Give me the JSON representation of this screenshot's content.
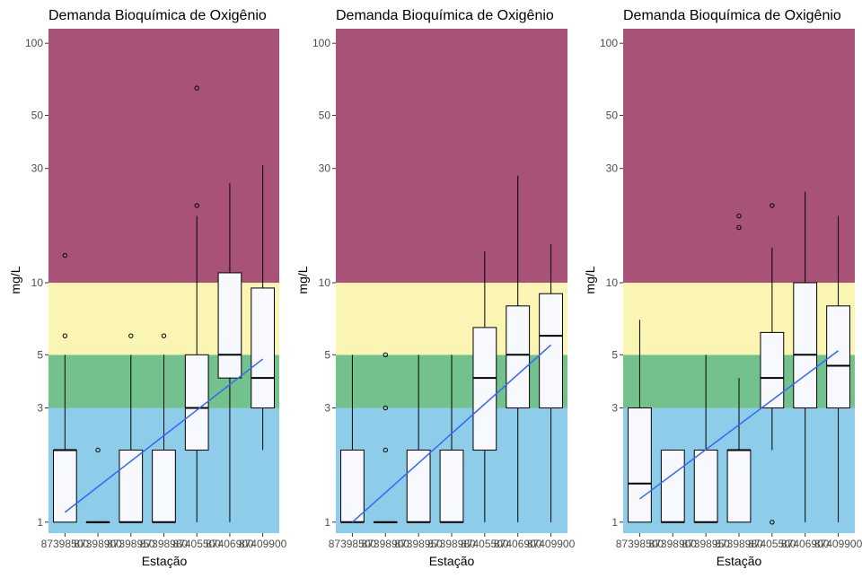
{
  "colors": {
    "band_blue": "#8ECDEA",
    "band_green": "#73C18C",
    "band_yellow": "#FAF5B2",
    "band_red": "#A95278",
    "box_fill": "#F8F8FF",
    "trend": "#3366FF"
  },
  "chart_data": [
    {
      "type": "box",
      "title": "Demanda Bioquímica de Oxigênio",
      "xlabel": "Estação",
      "ylabel": "mg/L",
      "y_scale": "log",
      "ylim": [
        0.9,
        115
      ],
      "y_ticks": [
        1,
        3,
        5,
        10,
        30,
        50,
        100
      ],
      "categories": [
        "87398500",
        "87398900",
        "87398950",
        "87398980",
        "87405500",
        "87406900",
        "87409900"
      ],
      "bands": [
        {
          "from": 0.9,
          "to": 3,
          "color": "band_blue"
        },
        {
          "from": 3,
          "to": 5,
          "color": "band_green"
        },
        {
          "from": 5,
          "to": 10,
          "color": "band_yellow"
        },
        {
          "from": 10,
          "to": 115,
          "color": "band_red"
        }
      ],
      "boxes": [
        {
          "min": 1,
          "q1": 1,
          "median": 2,
          "q3": 2,
          "max": 5,
          "outliers": [
            6,
            13
          ]
        },
        {
          "min": 1,
          "q1": 1,
          "median": 1,
          "q3": 1,
          "max": 1,
          "outliers": [
            2
          ]
        },
        {
          "min": 1,
          "q1": 1,
          "median": 1,
          "q3": 2,
          "max": 5,
          "outliers": [
            6
          ]
        },
        {
          "min": 1,
          "q1": 1,
          "median": 1,
          "q3": 2,
          "max": 5,
          "outliers": [
            6
          ]
        },
        {
          "min": 1,
          "q1": 2,
          "median": 3,
          "q3": 5,
          "max": 19,
          "outliers": [
            21,
            65
          ]
        },
        {
          "min": 1,
          "q1": 4,
          "median": 5,
          "q3": 11,
          "max": 26,
          "outliers": []
        },
        {
          "min": 2,
          "q1": 3,
          "median": 4,
          "q3": 9.5,
          "max": 31,
          "outliers": []
        }
      ],
      "trend": {
        "start": 1.1,
        "end": 4.8
      }
    },
    {
      "type": "box",
      "title": "Demanda Bioquímica de Oxigênio",
      "xlabel": "Estação",
      "ylabel": "mg/L",
      "y_scale": "log",
      "ylim": [
        0.9,
        115
      ],
      "y_ticks": [
        1,
        3,
        5,
        10,
        30,
        50,
        100
      ],
      "categories": [
        "87398500",
        "87398900",
        "87398950",
        "87398980",
        "87405500",
        "87406900",
        "87409900"
      ],
      "bands": [
        {
          "from": 0.9,
          "to": 3,
          "color": "band_blue"
        },
        {
          "from": 3,
          "to": 5,
          "color": "band_green"
        },
        {
          "from": 5,
          "to": 10,
          "color": "band_yellow"
        },
        {
          "from": 10,
          "to": 115,
          "color": "band_red"
        }
      ],
      "boxes": [
        {
          "min": 1,
          "q1": 1,
          "median": 1,
          "q3": 2,
          "max": 5,
          "outliers": []
        },
        {
          "min": 1,
          "q1": 1,
          "median": 1,
          "q3": 1,
          "max": 1,
          "outliers": [
            2,
            3,
            5
          ]
        },
        {
          "min": 1,
          "q1": 1,
          "median": 1,
          "q3": 2,
          "max": 5,
          "outliers": []
        },
        {
          "min": 1,
          "q1": 1,
          "median": 1,
          "q3": 2,
          "max": 5,
          "outliers": []
        },
        {
          "min": 1,
          "q1": 2,
          "median": 4,
          "q3": 6.5,
          "max": 13.5,
          "outliers": []
        },
        {
          "min": 1,
          "q1": 3,
          "median": 5,
          "q3": 8,
          "max": 28,
          "outliers": []
        },
        {
          "min": 1,
          "q1": 3,
          "median": 6,
          "q3": 9,
          "max": 14.5,
          "outliers": []
        }
      ],
      "trend": {
        "start": 1.0,
        "end": 5.5
      }
    },
    {
      "type": "box",
      "title": "Demanda Bioquímica de Oxigênio",
      "xlabel": "Estação",
      "ylabel": "mg/L",
      "y_scale": "log",
      "ylim": [
        0.9,
        115
      ],
      "y_ticks": [
        1,
        3,
        5,
        10,
        30,
        50,
        100
      ],
      "categories": [
        "87398500",
        "87398900",
        "87398950",
        "87398980",
        "87405500",
        "87406900",
        "87409900"
      ],
      "bands": [
        {
          "from": 0.9,
          "to": 3,
          "color": "band_blue"
        },
        {
          "from": 3,
          "to": 5,
          "color": "band_green"
        },
        {
          "from": 5,
          "to": 10,
          "color": "band_yellow"
        },
        {
          "from": 10,
          "to": 115,
          "color": "band_red"
        }
      ],
      "boxes": [
        {
          "min": 1,
          "q1": 1,
          "median": 1.45,
          "q3": 3,
          "max": 7,
          "outliers": []
        },
        {
          "min": 1,
          "q1": 1,
          "median": 1,
          "q3": 2,
          "max": 2,
          "outliers": []
        },
        {
          "min": 1,
          "q1": 1,
          "median": 1,
          "q3": 2,
          "max": 5,
          "outliers": []
        },
        {
          "min": 1,
          "q1": 1,
          "median": 2,
          "q3": 2,
          "max": 4,
          "outliers": [
            17,
            19
          ]
        },
        {
          "min": 2,
          "q1": 3,
          "median": 4,
          "q3": 6.2,
          "max": 14,
          "outliers": [
            1,
            21
          ]
        },
        {
          "min": 1,
          "q1": 3,
          "median": 5,
          "q3": 10,
          "max": 24,
          "outliers": []
        },
        {
          "min": 1,
          "q1": 3,
          "median": 4.5,
          "q3": 8,
          "max": 19,
          "outliers": []
        }
      ],
      "trend": {
        "start": 1.25,
        "end": 5.2
      }
    }
  ]
}
